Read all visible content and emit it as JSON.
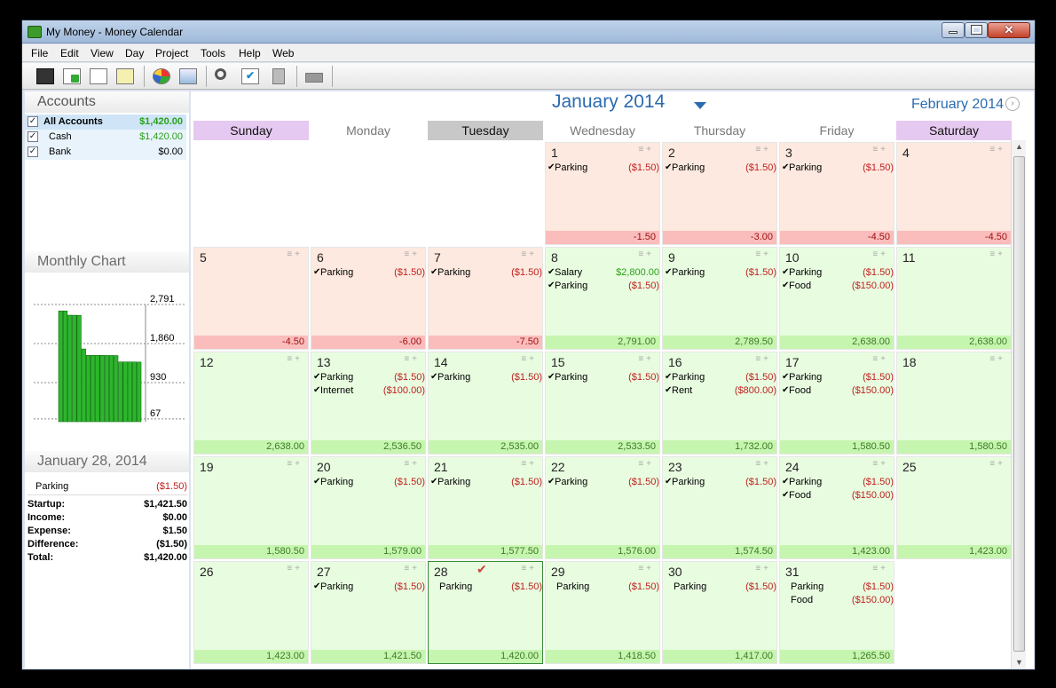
{
  "window": {
    "title": "My Money - Money Calendar"
  },
  "menu": [
    "File",
    "Edit",
    "View",
    "Day",
    "Project",
    "Tools",
    "Help",
    "Web"
  ],
  "toolbar": [
    "save-icon",
    "add-icon",
    "find-icon",
    "notes-icon",
    "pie-chart-icon",
    "card-icon",
    "search-icon",
    "checklist-icon",
    "calculator-icon",
    "print-icon"
  ],
  "accounts": {
    "title": "Accounts",
    "items": [
      {
        "name": "All Accounts",
        "amount": "$1,420.00",
        "checked": true
      },
      {
        "name": "Cash",
        "amount": "$1,420.00",
        "checked": true
      },
      {
        "name": "Bank",
        "amount": "$0.00",
        "checked": true
      }
    ]
  },
  "monthly_chart": {
    "title": "Monthly Chart",
    "ticks": [
      "2,791",
      "1,860",
      "930",
      "67"
    ]
  },
  "chart_data": {
    "type": "bar",
    "title": "Monthly Chart",
    "ylim": [
      0,
      2791
    ],
    "values": [
      2638,
      2638,
      2536.5,
      2535,
      2533.5,
      1732,
      1580.5,
      1580.5,
      1580.5,
      1579,
      1577.5,
      1576,
      1574.5,
      1423,
      1423,
      1423,
      1421.5,
      1420
    ]
  },
  "day_summary": {
    "title": "January 28, 2014",
    "entry": {
      "name": "Parking",
      "amount": "($1.50)"
    },
    "stats": [
      {
        "label": "Startup:",
        "value": "$1,421.50"
      },
      {
        "label": "Income:",
        "value": "$0.00"
      },
      {
        "label": "Expense:",
        "value": "$1.50"
      },
      {
        "label": "Difference:",
        "value": "($1.50)"
      },
      {
        "label": "Total:",
        "value": "$1,420.00"
      }
    ]
  },
  "calendar": {
    "month": "January 2014",
    "next_month": "February 2014",
    "weekdays": [
      "Sunday",
      "Monday",
      "Tuesday",
      "Wednesday",
      "Thursday",
      "Friday",
      "Saturday"
    ],
    "weekday_colors": [
      "#e5c9f0",
      "#ffffff",
      "#c8c8c8",
      "#ffffff",
      "#ffffff",
      "#ffffff",
      "#e5c9f0"
    ],
    "cells": [
      {
        "day": "",
        "style": "empty"
      },
      {
        "day": "",
        "style": "empty"
      },
      {
        "day": "",
        "style": "empty"
      },
      {
        "day": "1",
        "style": "red",
        "balance": "-1.50",
        "entries": [
          {
            "n": "Parking",
            "a": "($1.50)",
            "c": true
          }
        ]
      },
      {
        "day": "2",
        "style": "red",
        "balance": "-3.00",
        "entries": [
          {
            "n": "Parking",
            "a": "($1.50)",
            "c": true
          }
        ]
      },
      {
        "day": "3",
        "style": "red",
        "balance": "-4.50",
        "entries": [
          {
            "n": "Parking",
            "a": "($1.50)",
            "c": true
          }
        ]
      },
      {
        "day": "4",
        "style": "red",
        "balance": "-4.50",
        "entries": []
      },
      {
        "day": "5",
        "style": "red",
        "balance": "-4.50",
        "entries": []
      },
      {
        "day": "6",
        "style": "red",
        "balance": "-6.00",
        "entries": [
          {
            "n": "Parking",
            "a": "($1.50)",
            "c": true
          }
        ]
      },
      {
        "day": "7",
        "style": "red",
        "balance": "-7.50",
        "entries": [
          {
            "n": "Parking",
            "a": "($1.50)",
            "c": true
          }
        ]
      },
      {
        "day": "8",
        "style": "green",
        "balance": "2,791.00",
        "entries": [
          {
            "n": "Salary",
            "a": "$2,800.00",
            "c": true,
            "pos": true
          },
          {
            "n": "Parking",
            "a": "($1.50)",
            "c": true
          }
        ]
      },
      {
        "day": "9",
        "style": "green",
        "balance": "2,789.50",
        "entries": [
          {
            "n": "Parking",
            "a": "($1.50)",
            "c": true
          }
        ]
      },
      {
        "day": "10",
        "style": "green",
        "balance": "2,638.00",
        "entries": [
          {
            "n": "Parking",
            "a": "($1.50)",
            "c": true
          },
          {
            "n": "Food",
            "a": "($150.00)",
            "c": true
          }
        ]
      },
      {
        "day": "11",
        "style": "green",
        "balance": "2,638.00",
        "entries": []
      },
      {
        "day": "12",
        "style": "green",
        "balance": "2,638.00",
        "entries": []
      },
      {
        "day": "13",
        "style": "green",
        "balance": "2,536.50",
        "entries": [
          {
            "n": "Parking",
            "a": "($1.50)",
            "c": true
          },
          {
            "n": "Internet",
            "a": "($100.00)",
            "c": true
          }
        ]
      },
      {
        "day": "14",
        "style": "green",
        "balance": "2,535.00",
        "entries": [
          {
            "n": "Parking",
            "a": "($1.50)",
            "c": true
          }
        ]
      },
      {
        "day": "15",
        "style": "green",
        "balance": "2,533.50",
        "entries": [
          {
            "n": "Parking",
            "a": "($1.50)",
            "c": true
          }
        ]
      },
      {
        "day": "16",
        "style": "green",
        "balance": "1,732.00",
        "entries": [
          {
            "n": "Parking",
            "a": "($1.50)",
            "c": true
          },
          {
            "n": "Rent",
            "a": "($800.00)",
            "c": true
          }
        ]
      },
      {
        "day": "17",
        "style": "green",
        "balance": "1,580.50",
        "entries": [
          {
            "n": "Parking",
            "a": "($1.50)",
            "c": true
          },
          {
            "n": "Food",
            "a": "($150.00)",
            "c": true
          }
        ]
      },
      {
        "day": "18",
        "style": "green",
        "balance": "1,580.50",
        "entries": []
      },
      {
        "day": "19",
        "style": "green",
        "balance": "1,580.50",
        "entries": []
      },
      {
        "day": "20",
        "style": "green",
        "balance": "1,579.00",
        "entries": [
          {
            "n": "Parking",
            "a": "($1.50)",
            "c": true
          }
        ]
      },
      {
        "day": "21",
        "style": "green",
        "balance": "1,577.50",
        "entries": [
          {
            "n": "Parking",
            "a": "($1.50)",
            "c": true
          }
        ]
      },
      {
        "day": "22",
        "style": "green",
        "balance": "1,576.00",
        "entries": [
          {
            "n": "Parking",
            "a": "($1.50)",
            "c": true
          }
        ]
      },
      {
        "day": "23",
        "style": "green",
        "balance": "1,574.50",
        "entries": [
          {
            "n": "Parking",
            "a": "($1.50)",
            "c": true
          }
        ]
      },
      {
        "day": "24",
        "style": "green",
        "balance": "1,423.00",
        "entries": [
          {
            "n": "Parking",
            "a": "($1.50)",
            "c": true
          },
          {
            "n": "Food",
            "a": "($150.00)",
            "c": true
          }
        ]
      },
      {
        "day": "25",
        "style": "green",
        "balance": "1,423.00",
        "entries": []
      },
      {
        "day": "26",
        "style": "green",
        "balance": "1,423.00",
        "entries": []
      },
      {
        "day": "27",
        "style": "green",
        "balance": "1,421.50",
        "entries": [
          {
            "n": "Parking",
            "a": "($1.50)",
            "c": true
          }
        ]
      },
      {
        "day": "28",
        "style": "green",
        "balance": "1,420.00",
        "selected": true,
        "entries": [
          {
            "n": "Parking",
            "a": "($1.50)",
            "c": false
          }
        ]
      },
      {
        "day": "29",
        "style": "green",
        "balance": "1,418.50",
        "entries": [
          {
            "n": "Parking",
            "a": "($1.50)",
            "c": false
          }
        ]
      },
      {
        "day": "30",
        "style": "green",
        "balance": "1,417.00",
        "entries": [
          {
            "n": "Parking",
            "a": "($1.50)",
            "c": false
          }
        ]
      },
      {
        "day": "31",
        "style": "green",
        "balance": "1,265.50",
        "entries": [
          {
            "n": "Parking",
            "a": "($1.50)",
            "c": false
          },
          {
            "n": "Food",
            "a": "($150.00)",
            "c": false
          }
        ]
      }
    ]
  }
}
